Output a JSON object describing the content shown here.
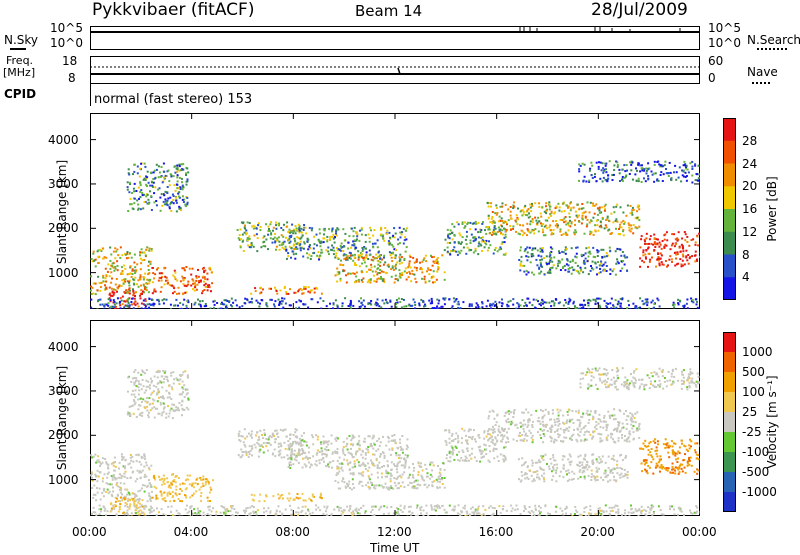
{
  "header": {
    "station": "Pykkvibaer (fitACF)",
    "beam": "Beam 14",
    "date": "28/Jul/2009"
  },
  "sky_panel": {
    "left_label": "N.Sky",
    "left_ticks": [
      "10^5",
      "10^0"
    ],
    "right_ticks": [
      "10^5",
      "10^0"
    ],
    "right_label": "N.Search",
    "right_style": "dotted"
  },
  "freq_panel": {
    "left_label_1": "Freq.",
    "left_label_2": "[MHz]",
    "left_ticks": [
      "18",
      "8"
    ],
    "right_ticks": [
      "60",
      "0"
    ],
    "right_label": "Nave",
    "right_style": "dotted"
  },
  "cpid_panel": {
    "label": "CPID",
    "text": "normal (fast stereo) 153"
  },
  "chart_data": [
    {
      "type": "heatmap",
      "quantity": "Power",
      "xlabel": "Time UT",
      "ylabel": "Slant Range [km]",
      "y_ticks": [
        "1000",
        "2000",
        "3000",
        "4000"
      ],
      "ylim": [
        180,
        4600
      ],
      "x_ticks": [
        "00:00",
        "04:00",
        "08:00",
        "12:00",
        "16:00",
        "20:00",
        "00:00"
      ],
      "colorbar": {
        "label": "Power [dB]",
        "ticks": [
          "4",
          "8",
          "12",
          "16",
          "20",
          "24",
          "28"
        ],
        "colors": [
          "#1414e6",
          "#2850c8",
          "#3c8c50",
          "#64b43c",
          "#f0c800",
          "#f08c00",
          "#f05000",
          "#e61414"
        ]
      }
    },
    {
      "type": "heatmap",
      "quantity": "Velocity",
      "xlabel": "Time UT",
      "ylabel": "Slant Range [km]",
      "y_ticks": [
        "1000",
        "2000",
        "3000",
        "4000"
      ],
      "ylim": [
        180,
        4600
      ],
      "x_ticks": [
        "00:00",
        "04:00",
        "08:00",
        "12:00",
        "16:00",
        "20:00",
        "00:00"
      ],
      "colorbar": {
        "label": "Velocity [m s⁻¹]",
        "ticks": [
          "1000",
          "500",
          "100",
          "25",
          "-25",
          "-100",
          "-500",
          "-1000"
        ],
        "colors": [
          "#1e32c8",
          "#2864b4",
          "#3c9650",
          "#64c832",
          "#c8c8c0",
          "#f0c850",
          "#f0a000",
          "#f06400",
          "#e61414"
        ]
      }
    }
  ],
  "footer": {
    "xlabel": "Time UT"
  }
}
